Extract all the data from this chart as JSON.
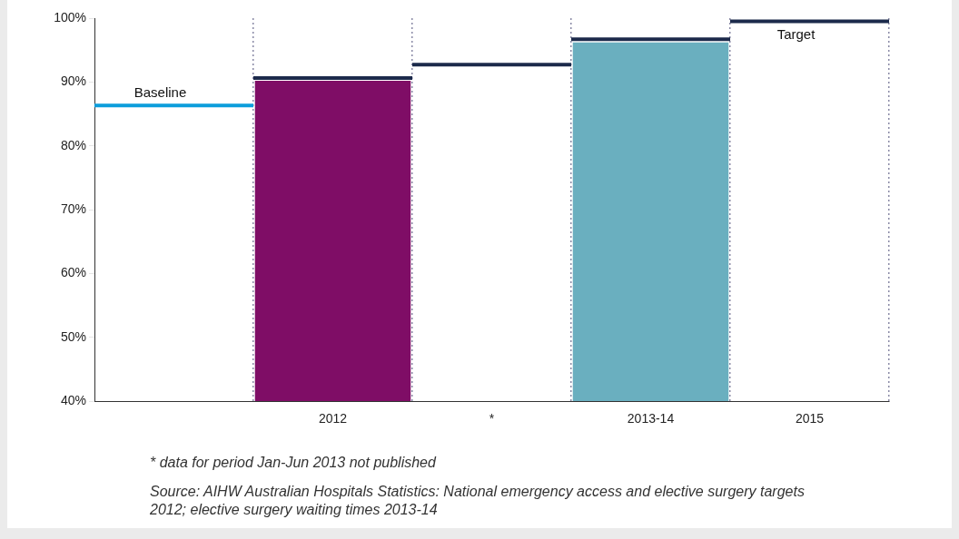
{
  "chart_data": {
    "type": "bar",
    "categories": [
      null,
      null,
      null,
      "2012",
      null,
      "*",
      null,
      "2013-14",
      null,
      "2015",
      null
    ],
    "series": [
      {
        "color": "#7f0d66",
        "values": [
          null,
          null,
          null,
          90.2,
          null,
          null,
          null,
          null,
          null,
          null,
          null
        ]
      },
      {
        "color": "#6aafbf",
        "values": [
          null,
          null,
          null,
          null,
          null,
          null,
          null,
          96.2,
          null,
          null,
          null
        ]
      },
      {
        "type": "line",
        "name": "Baseline",
        "color": "#0d9ddb",
        "values": [
          86.3,
          86.3,
          86.3,
          null,
          null,
          null,
          null,
          null,
          null,
          null,
          null
        ]
      },
      {
        "type": "line",
        "color": "#1c2a4b",
        "values": [
          null,
          null,
          90.6,
          90.6,
          90.6,
          null,
          null,
          null,
          null,
          null,
          null
        ]
      },
      {
        "type": "line",
        "color": "#1c2a4b",
        "values": [
          null,
          null,
          null,
          null,
          92.7,
          92.7,
          92.7,
          null,
          null,
          null,
          null
        ]
      },
      {
        "type": "line",
        "color": "#1c2a4b",
        "values": [
          null,
          null,
          null,
          null,
          null,
          null,
          96.7,
          96.7,
          96.7,
          null,
          null
        ]
      },
      {
        "type": "line",
        "name": "Target",
        "color": "#1c2a4b",
        "values": [
          null,
          null,
          null,
          null,
          null,
          null,
          null,
          null,
          99.5,
          99.5,
          99.5
        ]
      }
    ],
    "ylim": [
      40,
      100
    ],
    "yticks": [
      {
        "value": 40,
        "label": "40%"
      },
      {
        "value": 50,
        "label": "50%"
      },
      {
        "value": 60,
        "label": "60%"
      },
      {
        "value": 70,
        "label": "70%"
      },
      {
        "value": 80,
        "label": "80%"
      },
      {
        "value": 90,
        "label": "90%"
      },
      {
        "value": 100,
        "label": "100%"
      }
    ],
    "grid": "x",
    "line_style": "solid",
    "legend": false,
    "annotations": [
      "* data for period Jan-Jun 2013 not published",
      "Source: AIHW Australian Hospitals Statistics: National emergency access and elective surgery targets 2012; elective surgery waiting times 2013-14"
    ]
  }
}
